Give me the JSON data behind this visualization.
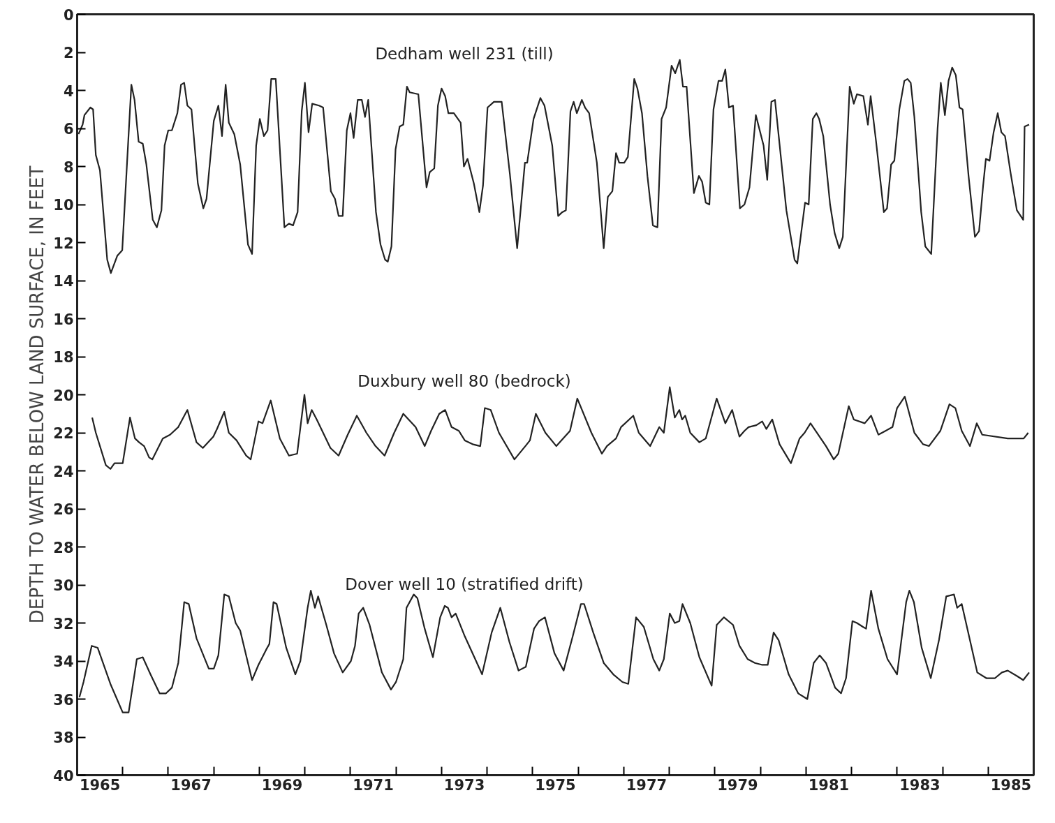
{
  "chart_data": {
    "type": "line",
    "ylabel": "DEPTH TO WATER BELOW LAND SURFACE, IN FEET",
    "xlim": [
      1965,
      1986
    ],
    "ylim": [
      40,
      0
    ],
    "yticks": [
      0,
      2,
      4,
      6,
      8,
      10,
      12,
      14,
      16,
      18,
      20,
      22,
      24,
      26,
      28,
      30,
      32,
      34,
      36,
      38,
      40
    ],
    "xticks": [
      {
        "value": 1965.5,
        "label": "1965"
      },
      {
        "value": 1967.5,
        "label": "1967"
      },
      {
        "value": 1969.5,
        "label": "1969"
      },
      {
        "value": 1971.5,
        "label": "1971"
      },
      {
        "value": 1973.5,
        "label": "1973"
      },
      {
        "value": 1975.5,
        "label": "1975"
      },
      {
        "value": 1977.5,
        "label": "1977"
      },
      {
        "value": 1979.5,
        "label": "1979"
      },
      {
        "value": 1981.5,
        "label": "1981"
      },
      {
        "value": 1983.5,
        "label": "1983"
      },
      {
        "value": 1985.5,
        "label": "1985"
      },
      {
        "value": 1966,
        "label": null
      },
      {
        "value": 1967,
        "label": null
      },
      {
        "value": 1968,
        "label": null
      },
      {
        "value": 1969,
        "label": null
      },
      {
        "value": 1970,
        "label": null
      },
      {
        "value": 1971,
        "label": null
      },
      {
        "value": 1972,
        "label": null
      },
      {
        "value": 1973,
        "label": null
      },
      {
        "value": 1974,
        "label": null
      },
      {
        "value": 1975,
        "label": null
      },
      {
        "value": 1976,
        "label": null
      },
      {
        "value": 1977,
        "label": null
      },
      {
        "value": 1978,
        "label": null
      },
      {
        "value": 1979,
        "label": null
      },
      {
        "value": 1980,
        "label": null
      },
      {
        "value": 1981,
        "label": null
      },
      {
        "value": 1982,
        "label": null
      },
      {
        "value": 1983,
        "label": null
      },
      {
        "value": 1984,
        "label": null
      },
      {
        "value": 1985,
        "label": null
      }
    ],
    "grid": false,
    "legend": false,
    "marker": "none",
    "line_style": "solid",
    "series": [
      {
        "name": "Dedham well 231 (till)",
        "color": "#222222",
        "x": [
          1965.03,
          1965.12,
          1965.16,
          1965.29,
          1965.35,
          1965.41,
          1965.5,
          1965.66,
          1965.74,
          1965.88,
          1965.99,
          1966.19,
          1966.26,
          1966.35,
          1966.44,
          1966.52,
          1966.66,
          1966.75,
          1966.85,
          1966.92,
          1967.0,
          1967.08,
          1967.2,
          1967.28,
          1967.35,
          1967.42,
          1967.51,
          1967.65,
          1967.77,
          1967.84,
          1968.0,
          1968.1,
          1968.18,
          1968.26,
          1968.33,
          1968.45,
          1968.58,
          1968.75,
          1968.84,
          1968.93,
          1969.01,
          1969.1,
          1969.18,
          1969.26,
          1969.36,
          1969.55,
          1969.65,
          1969.74,
          1969.84,
          1969.93,
          1970.0,
          1970.08,
          1970.16,
          1970.31,
          1970.4,
          1970.57,
          1970.66,
          1970.74,
          1970.83,
          1970.92,
          1971.0,
          1971.07,
          1971.16,
          1971.25,
          1971.32,
          1971.39,
          1971.56,
          1971.66,
          1971.76,
          1971.82,
          1971.9,
          1971.99,
          1972.08,
          1972.16,
          1972.24,
          1972.3,
          1972.49,
          1972.67,
          1972.74,
          1972.84,
          1972.92,
          1973.0,
          1973.08,
          1973.15,
          1973.27,
          1973.42,
          1973.49,
          1973.57,
          1973.71,
          1973.83,
          1973.91,
          1974.01,
          1974.15,
          1974.32,
          1974.5,
          1974.66,
          1974.83,
          1974.88,
          1975.02,
          1975.17,
          1975.26,
          1975.43,
          1975.56,
          1975.65,
          1975.73,
          1975.83,
          1975.9,
          1975.97,
          1976.08,
          1976.15,
          1976.24,
          1976.41,
          1976.56,
          1976.65,
          1976.75,
          1976.83,
          1976.9,
          1977.01,
          1977.09,
          1977.23,
          1977.3,
          1977.4,
          1977.52,
          1977.64,
          1977.74,
          1977.83,
          1977.93,
          1978.05,
          1978.13,
          1978.23,
          1978.3,
          1978.38,
          1978.54,
          1978.65,
          1978.72,
          1978.8,
          1978.88,
          1978.97,
          1979.08,
          1979.16,
          1979.23,
          1979.31,
          1979.4,
          1979.55,
          1979.65,
          1979.76,
          1979.9,
          1980.07,
          1980.15,
          1980.24,
          1980.32,
          1980.57,
          1980.75,
          1980.81,
          1980.98,
          1981.06,
          1981.15,
          1981.23,
          1981.29,
          1981.38,
          1981.53,
          1981.63,
          1981.73,
          1981.81,
          1981.96,
          1982.05,
          1982.12,
          1982.26,
          1982.36,
          1982.42,
          1982.54,
          1982.71,
          1982.78,
          1982.87,
          1982.94,
          1983.05,
          1983.16,
          1983.23,
          1983.3,
          1983.38,
          1983.53,
          1983.62,
          1983.75,
          1983.89,
          1983.96,
          1984.05,
          1984.13,
          1984.21,
          1984.29,
          1984.37,
          1984.44,
          1984.57,
          1984.71,
          1984.8,
          1984.89,
          1984.95,
          1985.03,
          1985.12,
          1985.21,
          1985.29,
          1985.37,
          1985.49,
          1985.63,
          1985.77,
          1985.8,
          1985.9
        ],
        "values": [
          6.3,
          5.8,
          5.3,
          4.9,
          5.0,
          7.4,
          8.2,
          12.9,
          13.6,
          12.7,
          12.4,
          3.7,
          4.5,
          6.7,
          6.8,
          7.9,
          10.8,
          11.2,
          10.3,
          6.9,
          6.1,
          6.1,
          5.2,
          3.7,
          3.6,
          4.8,
          5.0,
          8.9,
          10.2,
          9.7,
          5.6,
          4.8,
          6.4,
          3.7,
          5.7,
          6.3,
          7.9,
          12.1,
          12.6,
          6.9,
          5.5,
          6.4,
          6.1,
          3.4,
          3.4,
          11.2,
          11.0,
          11.1,
          10.4,
          5.1,
          3.6,
          6.2,
          4.7,
          4.8,
          4.9,
          9.3,
          9.7,
          10.6,
          10.6,
          6.1,
          5.2,
          6.5,
          4.5,
          4.5,
          5.4,
          4.5,
          10.4,
          12.1,
          12.9,
          13.0,
          12.2,
          7.1,
          5.9,
          5.8,
          3.8,
          4.1,
          4.2,
          9.1,
          8.3,
          8.1,
          4.8,
          3.9,
          4.3,
          5.2,
          5.2,
          5.7,
          8.0,
          7.6,
          8.9,
          10.4,
          9.0,
          4.9,
          4.6,
          4.6,
          8.4,
          12.3,
          7.8,
          7.8,
          5.5,
          4.4,
          4.8,
          6.9,
          10.6,
          10.4,
          10.3,
          5.1,
          4.6,
          5.2,
          4.5,
          4.9,
          5.2,
          7.8,
          12.3,
          9.6,
          9.3,
          7.3,
          7.8,
          7.8,
          7.5,
          3.4,
          3.9,
          5.2,
          8.5,
          11.1,
          11.2,
          5.5,
          4.9,
          2.7,
          3.1,
          2.4,
          3.8,
          3.8,
          9.4,
          8.5,
          8.8,
          9.9,
          10.0,
          5.0,
          3.5,
          3.5,
          2.9,
          4.9,
          4.8,
          10.2,
          10.0,
          9.1,
          5.3,
          6.9,
          8.7,
          4.6,
          4.5,
          10.3,
          12.9,
          13.1,
          9.9,
          10.0,
          5.5,
          5.2,
          5.5,
          6.4,
          10.0,
          11.5,
          12.3,
          11.7,
          3.8,
          4.7,
          4.2,
          4.3,
          5.8,
          4.3,
          6.7,
          10.4,
          10.2,
          7.9,
          7.7,
          5.0,
          3.5,
          3.4,
          3.6,
          5.4,
          10.4,
          12.2,
          12.6,
          6.0,
          3.6,
          5.3,
          3.5,
          2.8,
          3.2,
          4.9,
          5.0,
          8.5,
          11.7,
          11.4,
          9.0,
          7.6,
          7.7,
          6.2,
          5.2,
          6.2,
          6.4,
          8.3,
          10.3,
          10.8,
          5.9,
          5.8
        ]
      },
      {
        "name": "Duxbury well 80 (bedrock)",
        "color": "#222222",
        "x": [
          1965.33,
          1965.41,
          1965.63,
          1965.73,
          1965.82,
          1966.0,
          1966.16,
          1966.27,
          1966.36,
          1966.47,
          1966.58,
          1966.65,
          1966.88,
          1967.04,
          1967.22,
          1967.42,
          1967.62,
          1967.76,
          1967.99,
          1968.07,
          1968.23,
          1968.33,
          1968.5,
          1968.71,
          1968.81,
          1968.98,
          1969.07,
          1969.25,
          1969.45,
          1969.65,
          1969.83,
          1969.99,
          1970.06,
          1970.15,
          1970.26,
          1970.4,
          1970.56,
          1970.74,
          1970.94,
          1971.14,
          1971.28,
          1971.35,
          1971.55,
          1971.75,
          1971.96,
          1972.16,
          1972.43,
          1972.63,
          1972.77,
          1972.95,
          1973.08,
          1973.22,
          1973.38,
          1973.51,
          1973.68,
          1973.85,
          1973.95,
          1974.08,
          1974.26,
          1974.6,
          1974.84,
          1974.94,
          1975.07,
          1975.28,
          1975.52,
          1975.82,
          1975.98,
          1976.29,
          1976.52,
          1976.63,
          1976.83,
          1976.94,
          1977.21,
          1977.33,
          1977.58,
          1977.78,
          1977.88,
          1978.01,
          1978.12,
          1978.22,
          1978.28,
          1978.35,
          1978.46,
          1978.66,
          1978.8,
          1979.04,
          1979.23,
          1979.38,
          1979.54,
          1979.65,
          1979.74,
          1979.91,
          1980.04,
          1980.13,
          1980.26,
          1980.42,
          1980.67,
          1980.86,
          1980.97,
          1981.1,
          1981.44,
          1981.61,
          1981.71,
          1981.94,
          1982.05,
          1982.29,
          1982.43,
          1982.59,
          1982.9,
          1983.0,
          1983.17,
          1983.38,
          1983.57,
          1983.7,
          1983.95,
          1984.15,
          1984.28,
          1984.42,
          1984.6,
          1984.75,
          1984.87,
          1985.43,
          1985.78,
          1985.88
        ],
        "values": [
          21.2,
          22.0,
          23.7,
          23.9,
          23.6,
          23.6,
          21.2,
          22.3,
          22.5,
          22.7,
          23.3,
          23.4,
          22.3,
          22.1,
          21.7,
          20.8,
          22.5,
          22.8,
          22.2,
          21.8,
          20.9,
          22.0,
          22.4,
          23.2,
          23.4,
          21.4,
          21.5,
          20.3,
          22.3,
          23.2,
          23.1,
          20.0,
          21.5,
          20.8,
          21.3,
          22.0,
          22.8,
          23.2,
          22.1,
          21.1,
          21.7,
          22.0,
          22.7,
          23.2,
          22.0,
          21.0,
          21.7,
          22.7,
          21.9,
          21.0,
          20.8,
          21.7,
          21.9,
          22.4,
          22.6,
          22.7,
          20.7,
          20.8,
          22.0,
          23.4,
          22.7,
          22.4,
          21.0,
          22.0,
          22.7,
          21.9,
          20.2,
          22.0,
          23.1,
          22.7,
          22.3,
          21.7,
          21.1,
          22.0,
          22.7,
          21.7,
          22.0,
          19.6,
          21.2,
          20.8,
          21.3,
          21.1,
          22.0,
          22.5,
          22.3,
          20.2,
          21.5,
          20.8,
          22.2,
          21.9,
          21.7,
          21.6,
          21.4,
          21.8,
          21.3,
          22.6,
          23.6,
          22.3,
          22.0,
          21.5,
          22.7,
          23.4,
          23.1,
          20.6,
          21.3,
          21.5,
          21.1,
          22.1,
          21.7,
          20.7,
          20.1,
          22.0,
          22.6,
          22.7,
          21.9,
          20.5,
          20.7,
          21.9,
          22.7,
          21.5,
          22.1,
          22.3,
          22.3,
          22.0
        ]
      },
      {
        "name": "Dover well 10 (stratified drift)",
        "color": "#222222",
        "x": [
          1965.05,
          1965.14,
          1965.32,
          1965.45,
          1965.73,
          1966.0,
          1966.13,
          1966.31,
          1966.44,
          1966.61,
          1966.81,
          1966.95,
          1967.08,
          1967.22,
          1967.35,
          1967.45,
          1967.62,
          1967.89,
          1968.0,
          1968.1,
          1968.23,
          1968.33,
          1968.48,
          1968.58,
          1968.84,
          1968.98,
          1969.15,
          1969.22,
          1969.31,
          1969.38,
          1969.59,
          1969.79,
          1969.9,
          1970.06,
          1970.13,
          1970.22,
          1970.29,
          1970.47,
          1970.64,
          1970.83,
          1971.01,
          1971.1,
          1971.18,
          1971.28,
          1971.42,
          1971.69,
          1971.89,
          1972.0,
          1972.16,
          1972.23,
          1972.39,
          1972.47,
          1972.63,
          1972.81,
          1972.97,
          1973.07,
          1973.14,
          1973.22,
          1973.31,
          1973.51,
          1973.72,
          1973.89,
          1974.1,
          1974.29,
          1974.49,
          1974.69,
          1974.85,
          1975.03,
          1975.14,
          1975.27,
          1975.48,
          1975.68,
          1975.88,
          1976.06,
          1976.13,
          1976.33,
          1976.56,
          1976.77,
          1976.97,
          1977.1,
          1977.27,
          1977.44,
          1977.65,
          1977.78,
          1977.88,
          1978.01,
          1978.12,
          1978.22,
          1978.29,
          1978.46,
          1978.66,
          1978.93,
          1979.04,
          1979.2,
          1979.4,
          1979.54,
          1979.72,
          1979.88,
          1980.04,
          1980.16,
          1980.29,
          1980.4,
          1980.62,
          1980.83,
          1981.03,
          1981.17,
          1981.3,
          1981.44,
          1981.64,
          1981.77,
          1981.88,
          1982.02,
          1982.12,
          1982.25,
          1982.32,
          1982.43,
          1982.59,
          1982.79,
          1983.0,
          1983.2,
          1983.27,
          1983.37,
          1983.54,
          1983.74,
          1983.92,
          1984.08,
          1984.25,
          1984.32,
          1984.42,
          1984.6,
          1984.76,
          1984.96,
          1985.15,
          1985.3,
          1985.43,
          1985.64,
          1985.77,
          1985.9
        ],
        "values": [
          35.9,
          35.1,
          33.2,
          33.3,
          35.2,
          36.7,
          36.7,
          33.9,
          33.8,
          34.7,
          35.7,
          35.7,
          35.4,
          34.1,
          30.9,
          31.0,
          32.8,
          34.4,
          34.4,
          33.7,
          30.5,
          30.6,
          32.0,
          32.4,
          35.0,
          34.2,
          33.4,
          33.1,
          30.9,
          31.0,
          33.3,
          34.7,
          34.0,
          31.2,
          30.3,
          31.2,
          30.6,
          32.1,
          33.6,
          34.6,
          34.0,
          33.2,
          31.5,
          31.2,
          32.1,
          34.6,
          35.5,
          35.1,
          33.9,
          31.2,
          30.5,
          30.7,
          32.3,
          33.8,
          31.7,
          31.1,
          31.2,
          31.7,
          31.5,
          32.7,
          33.8,
          34.7,
          32.5,
          31.2,
          33.0,
          34.5,
          34.3,
          32.3,
          31.9,
          31.7,
          33.6,
          34.5,
          32.7,
          31.0,
          31.0,
          32.5,
          34.1,
          34.7,
          35.1,
          35.2,
          31.7,
          32.2,
          33.9,
          34.5,
          33.9,
          31.5,
          32.0,
          31.9,
          31.0,
          32.0,
          33.8,
          35.3,
          32.1,
          31.7,
          32.1,
          33.2,
          33.9,
          34.1,
          34.2,
          34.2,
          32.5,
          32.9,
          34.7,
          35.7,
          36.0,
          34.1,
          33.7,
          34.1,
          35.4,
          35.7,
          34.9,
          31.9,
          32.0,
          32.2,
          32.3,
          30.3,
          32.3,
          33.9,
          34.7,
          30.9,
          30.3,
          30.9,
          33.3,
          34.9,
          32.9,
          30.6,
          30.5,
          31.2,
          31.0,
          32.9,
          34.6,
          34.9,
          34.9,
          34.6,
          34.5,
          34.8,
          35.0,
          34.6
        ]
      }
    ]
  }
}
